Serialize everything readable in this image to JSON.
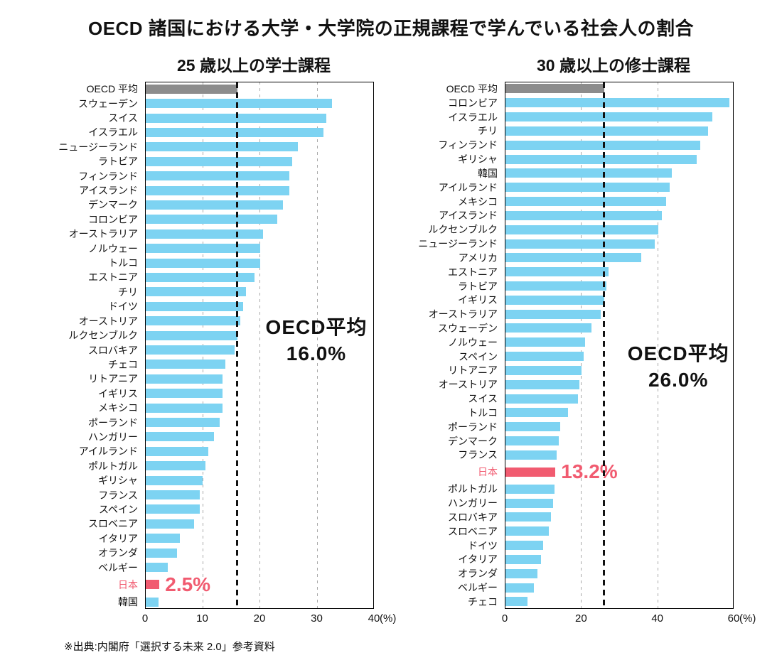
{
  "title": "OECD 諸国における大学・大学院の正規課程で学んでいる社会人の割合",
  "source": "※出典:内閣府「選択する未来 2.0」参考資料",
  "colors": {
    "bar": "#7dd3f2",
    "average_bar": "#8c8c8c",
    "highlight": "#f15b70",
    "grid": "#a9a9a9",
    "average_line": "#111111"
  },
  "chart_data": [
    {
      "type": "bar",
      "orientation": "horizontal",
      "title": "25 歳以上の学士課程",
      "xlim": [
        0,
        40
      ],
      "xticks": [
        0,
        10,
        20,
        30,
        40
      ],
      "x_unit": "(%)",
      "average_category": "OECD 平均",
      "average_line": 16.0,
      "annotation": [
        "OECD平均",
        "16.0%"
      ],
      "highlight_category": "日本",
      "highlight_label": "2.5%",
      "categories": [
        "OECD 平均",
        "スウェーデン",
        "スイス",
        "イスラエル",
        "ニュージーランド",
        "ラトビア",
        "フィンランド",
        "アイスランド",
        "デンマーク",
        "コロンビア",
        "オーストラリア",
        "ノルウェー",
        "トルコ",
        "エストニア",
        "チリ",
        "ドイツ",
        "オーストリア",
        "ルクセンブルク",
        "スロバキア",
        "チェコ",
        "リトアニア",
        "イギリス",
        "メキシコ",
        "ポーランド",
        "ハンガリー",
        "アイルランド",
        "ポルトガル",
        "ギリシャ",
        "フランス",
        "スペイン",
        "スロベニア",
        "イタリア",
        "オランダ",
        "ベルギー",
        "日本",
        "韓国"
      ],
      "values": [
        16.0,
        32.5,
        31.5,
        31.0,
        26.5,
        25.5,
        25.0,
        25.0,
        24.0,
        23.0,
        20.5,
        20.0,
        20.0,
        19.0,
        17.5,
        17.0,
        16.5,
        16.0,
        15.5,
        14.0,
        13.5,
        13.5,
        13.5,
        13.0,
        12.0,
        11.0,
        10.5,
        10.0,
        9.5,
        9.5,
        8.5,
        6.0,
        5.5,
        4.0,
        2.5,
        2.4
      ]
    },
    {
      "type": "bar",
      "orientation": "horizontal",
      "title": "30 歳以上の修士課程",
      "xlim": [
        0,
        60
      ],
      "xticks": [
        0,
        20,
        40,
        60
      ],
      "x_unit": "(%)",
      "average_category": "OECD 平均",
      "average_line": 26.0,
      "annotation": [
        "OECD平均",
        "26.0%"
      ],
      "highlight_category": "日本",
      "highlight_label": "13.2%",
      "categories": [
        "OECD 平均",
        "コロンビア",
        "イスラエル",
        "チリ",
        "フィンランド",
        "ギリシャ",
        "韓国",
        "アイルランド",
        "メキシコ",
        "アイスランド",
        "ルクセンブルク",
        "ニュージーランド",
        "アメリカ",
        "エストニア",
        "ラトビア",
        "イギリス",
        "オーストラリア",
        "スウェーデン",
        "ノルウェー",
        "スペイン",
        "リトアニア",
        "オーストリア",
        "スイス",
        "トルコ",
        "ポーランド",
        "デンマーク",
        "フランス",
        "日本",
        "ポルトガル",
        "ハンガリー",
        "スロバキア",
        "スロベニア",
        "ドイツ",
        "イタリア",
        "オランダ",
        "ベルギー",
        "チェコ"
      ],
      "values": [
        26.0,
        58.5,
        54.0,
        53.0,
        51.0,
        50.0,
        43.5,
        43.0,
        42.0,
        41.0,
        40.0,
        39.0,
        35.5,
        27.0,
        26.5,
        26.0,
        25.0,
        22.5,
        21.0,
        20.5,
        20.0,
        19.5,
        19.0,
        16.5,
        14.5,
        14.0,
        13.5,
        13.2,
        13.0,
        12.5,
        12.0,
        11.5,
        10.0,
        9.5,
        8.5,
        7.5,
        6.0
      ]
    }
  ]
}
